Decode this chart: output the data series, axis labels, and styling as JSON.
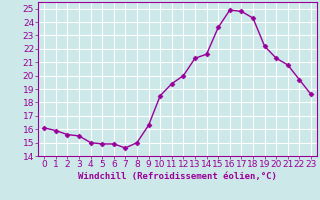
{
  "x": [
    0,
    1,
    2,
    3,
    4,
    5,
    6,
    7,
    8,
    9,
    10,
    11,
    12,
    13,
    14,
    15,
    16,
    17,
    18,
    19,
    20,
    21,
    22,
    23
  ],
  "y": [
    16.1,
    15.9,
    15.6,
    15.5,
    15.0,
    14.9,
    14.9,
    14.6,
    15.0,
    16.3,
    18.5,
    19.4,
    20.0,
    21.3,
    21.6,
    23.6,
    24.9,
    24.8,
    24.3,
    22.2,
    21.3,
    20.8,
    19.7,
    18.6
  ],
  "line_color": "#990099",
  "marker": "D",
  "markersize": 2.5,
  "linewidth": 1.0,
  "xlabel": "Windchill (Refroidissement éolien,°C)",
  "xlim": [
    -0.5,
    23.5
  ],
  "ylim": [
    14,
    25.5
  ],
  "yticks": [
    14,
    15,
    16,
    17,
    18,
    19,
    20,
    21,
    22,
    23,
    24,
    25
  ],
  "xticks": [
    0,
    1,
    2,
    3,
    4,
    5,
    6,
    7,
    8,
    9,
    10,
    11,
    12,
    13,
    14,
    15,
    16,
    17,
    18,
    19,
    20,
    21,
    22,
    23
  ],
  "bg_color": "#cce8e8",
  "grid_color": "#ffffff",
  "line_border_color": "#7700aa",
  "xlabel_fontsize": 6.5,
  "tick_fontsize": 6.5
}
